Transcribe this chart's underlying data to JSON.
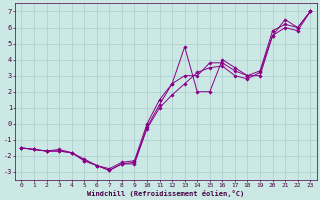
{
  "xlabel": "Windchill (Refroidissement éolien,°C)",
  "bg_color": "#cce8e4",
  "grid_color": "#aacccc",
  "line_color": "#880088",
  "marker_color": "#880088",
  "xlim": [
    -0.5,
    23.5
  ],
  "ylim": [
    -3.5,
    7.5
  ],
  "xticks": [
    0,
    1,
    2,
    3,
    4,
    5,
    6,
    7,
    8,
    9,
    10,
    11,
    12,
    13,
    14,
    15,
    16,
    17,
    18,
    19,
    20,
    21,
    22,
    23
  ],
  "yticks": [
    -3,
    -2,
    -1,
    0,
    1,
    2,
    3,
    4,
    5,
    6,
    7
  ],
  "series1_x": [
    0,
    1,
    2,
    3,
    4,
    5,
    6,
    7,
    8,
    9,
    10,
    11,
    12,
    13,
    14,
    15,
    16,
    17,
    18,
    19,
    20,
    21,
    22,
    23
  ],
  "series1_y": [
    -1.5,
    -1.6,
    -1.7,
    -1.7,
    -1.8,
    -2.3,
    -2.6,
    -2.9,
    -2.5,
    -2.4,
    -0.2,
    1.2,
    2.5,
    3.0,
    3.0,
    3.8,
    3.8,
    3.3,
    3.0,
    3.3,
    5.8,
    6.2,
    6.0,
    7.0
  ],
  "series2_x": [
    0,
    1,
    2,
    3,
    4,
    5,
    6,
    7,
    8,
    9,
    10,
    11,
    12,
    13,
    14,
    15,
    16,
    17,
    18,
    19,
    20,
    21,
    22,
    23
  ],
  "series2_y": [
    -1.5,
    -1.6,
    -1.7,
    -1.6,
    -1.8,
    -2.2,
    -2.6,
    -2.8,
    -2.4,
    -2.3,
    0.0,
    1.5,
    2.5,
    4.8,
    2.0,
    2.0,
    4.0,
    3.5,
    3.0,
    3.0,
    5.5,
    6.5,
    6.0,
    7.0
  ],
  "series3_x": [
    0,
    1,
    2,
    3,
    4,
    5,
    6,
    7,
    8,
    9,
    10,
    11,
    12,
    13,
    14,
    15,
    16,
    17,
    18,
    19,
    20,
    21,
    22,
    23
  ],
  "series3_y": [
    -1.5,
    -1.6,
    -1.7,
    -1.7,
    -1.8,
    -2.3,
    -2.6,
    -2.9,
    -2.5,
    -2.5,
    -0.3,
    1.0,
    1.8,
    2.5,
    3.2,
    3.5,
    3.6,
    3.0,
    2.8,
    3.2,
    5.5,
    6.0,
    5.8,
    7.0
  ],
  "tick_fontsize": 4.5,
  "xlabel_fontsize": 5.0,
  "lw": 0.7,
  "ms": 1.8
}
